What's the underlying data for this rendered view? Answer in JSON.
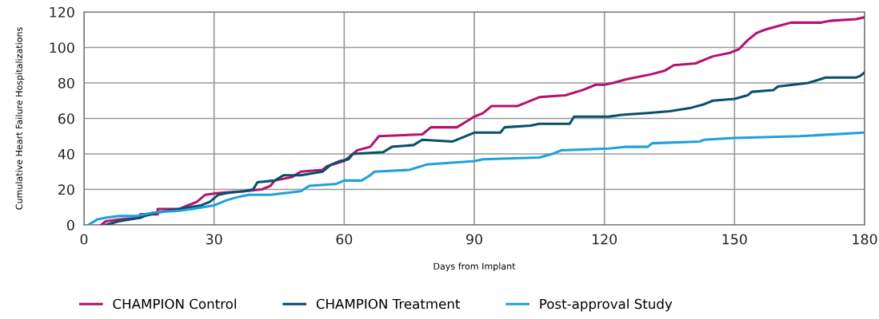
{
  "chart_data": {
    "type": "line",
    "xlabel": "Days from Implant",
    "ylabel": "Cumulative Heart Failure Hospitalizations",
    "xlim": [
      0,
      180
    ],
    "xticks": [
      0,
      30,
      60,
      90,
      120,
      150,
      180
    ],
    "ylim": [
      0,
      120
    ],
    "yticks": [
      0,
      20,
      40,
      60,
      80,
      100,
      120
    ],
    "grid": true,
    "legend": "bottom",
    "line_style": "solid",
    "series": [
      {
        "name": "CHAMPION Control",
        "color": "#b5126e",
        "x": [
          4,
          5,
          8,
          13,
          13,
          17,
          17,
          22,
          24,
          26,
          27,
          28,
          31,
          37,
          41,
          43,
          44,
          48,
          50,
          55,
          56,
          60,
          61,
          63,
          66,
          67,
          68,
          78,
          80,
          86,
          88,
          90,
          92,
          94,
          100,
          105,
          111,
          115,
          118,
          120,
          122,
          125,
          131,
          134,
          136,
          141,
          145,
          149,
          151,
          153,
          155,
          157,
          160,
          163,
          170,
          172,
          178,
          180
        ],
        "values": [
          0,
          2,
          3,
          4,
          6,
          6,
          9,
          9,
          11,
          13,
          15,
          17,
          18,
          19,
          20,
          22,
          25,
          27,
          30,
          31,
          33,
          36,
          38,
          42,
          44,
          47,
          50,
          51,
          55,
          55,
          58,
          61,
          63,
          67,
          67,
          72,
          73,
          76,
          79,
          79,
          80,
          82,
          85,
          87,
          90,
          91,
          95,
          97,
          99,
          104,
          108,
          110,
          112,
          114,
          114,
          115,
          116,
          117
        ]
      },
      {
        "name": "CHAMPION Treatment",
        "color": "#0b4f6c",
        "x": [
          5,
          8,
          13,
          14,
          17,
          22,
          27,
          29,
          31,
          33,
          37,
          39,
          40,
          44,
          46,
          50,
          55,
          57,
          59,
          61,
          62,
          69,
          71,
          76,
          78,
          85,
          90,
          96,
          97,
          103,
          105,
          112,
          113,
          121,
          124,
          130,
          135,
          140,
          143,
          145,
          150,
          153,
          154,
          159,
          160,
          167,
          171,
          178,
          179,
          180
        ],
        "values": [
          0,
          2,
          4,
          5,
          7,
          9,
          11,
          13,
          17,
          18,
          19,
          20,
          24,
          25,
          28,
          28,
          30,
          34,
          36,
          37,
          40,
          41,
          44,
          45,
          48,
          47,
          52,
          52,
          55,
          56,
          57,
          57,
          61,
          61,
          62,
          63,
          64,
          66,
          68,
          70,
          71,
          73,
          75,
          76,
          78,
          80,
          83,
          83,
          84,
          86
        ]
      },
      {
        "name": "Post-approval Study",
        "color": "#1ea1dc",
        "x": [
          1,
          3,
          5,
          8,
          12,
          14,
          16,
          22,
          25,
          30,
          33,
          36,
          38,
          43,
          50,
          52,
          58,
          60,
          64,
          66,
          67,
          75,
          79,
          90,
          92,
          105,
          108,
          110,
          121,
          125,
          130,
          131,
          142,
          143,
          150,
          165,
          180
        ],
        "values": [
          0,
          3,
          4,
          5,
          5,
          6,
          7,
          8,
          9,
          11,
          14,
          16,
          17,
          17,
          19,
          22,
          23,
          25,
          25,
          28,
          30,
          31,
          34,
          36,
          37,
          38,
          40,
          42,
          43,
          44,
          44,
          46,
          47,
          48,
          49,
          50,
          52
        ]
      }
    ]
  }
}
